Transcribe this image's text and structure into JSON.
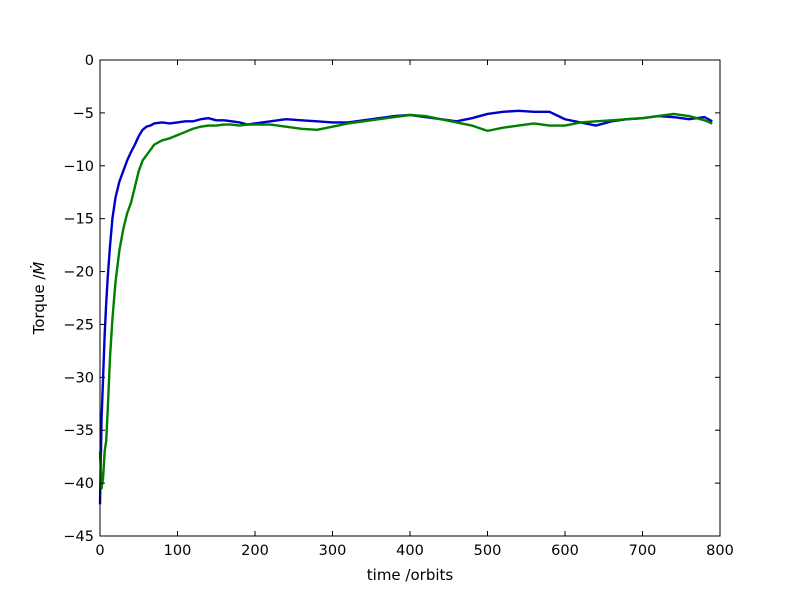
{
  "chart_data": {
    "type": "line",
    "title": "",
    "xlabel": "time /orbits",
    "ylabel": "Torque /",
    "ylabel_math": "Ṁ",
    "xlim": [
      0,
      800
    ],
    "ylim": [
      -45,
      0
    ],
    "xticks": [
      0,
      100,
      200,
      300,
      400,
      500,
      600,
      700,
      800
    ],
    "yticks": [
      0,
      -5,
      -10,
      -15,
      -20,
      -25,
      -30,
      -35,
      -40,
      -45
    ],
    "xtick_labels": [
      "0",
      "100",
      "200",
      "300",
      "400",
      "500",
      "600",
      "700",
      "800"
    ],
    "ytick_labels": [
      "0",
      "−5",
      "−10",
      "−15",
      "−20",
      "−25",
      "−30",
      "−35",
      "−40",
      "−45"
    ],
    "grid": false,
    "legend": "none",
    "series": [
      {
        "color": "#0000cc",
        "x": [
          0,
          2,
          4,
          6,
          8,
          10,
          13,
          16,
          20,
          25,
          30,
          35,
          40,
          45,
          50,
          55,
          60,
          65,
          70,
          80,
          90,
          100,
          110,
          120,
          130,
          140,
          150,
          160,
          170,
          180,
          190,
          200,
          220,
          240,
          260,
          280,
          300,
          320,
          340,
          360,
          380,
          400,
          420,
          440,
          460,
          480,
          500,
          520,
          540,
          560,
          580,
          600,
          620,
          640,
          660,
          680,
          700,
          720,
          740,
          760,
          780,
          790
        ],
        "y": [
          -42,
          -34,
          -30,
          -26,
          -23,
          -20.5,
          -17.5,
          -15,
          -13,
          -11.5,
          -10.5,
          -9.5,
          -8.7,
          -8,
          -7.2,
          -6.6,
          -6.3,
          -6.2,
          -6.0,
          -5.9,
          -6.0,
          -5.9,
          -5.8,
          -5.8,
          -5.6,
          -5.5,
          -5.7,
          -5.7,
          -5.8,
          -5.9,
          -6.1,
          -6.0,
          -5.8,
          -5.6,
          -5.7,
          -5.8,
          -5.9,
          -5.9,
          -5.7,
          -5.5,
          -5.3,
          -5.2,
          -5.4,
          -5.6,
          -5.8,
          -5.5,
          -5.1,
          -4.9,
          -4.8,
          -4.9,
          -4.9,
          -5.6,
          -5.9,
          -6.2,
          -5.8,
          -5.6,
          -5.5,
          -5.3,
          -5.4,
          -5.6,
          -5.4,
          -5.8
        ]
      },
      {
        "color": "#007f00",
        "x": [
          0,
          2,
          4,
          6,
          8,
          10,
          13,
          16,
          20,
          25,
          30,
          35,
          40,
          45,
          50,
          55,
          60,
          65,
          70,
          80,
          90,
          100,
          110,
          120,
          130,
          140,
          150,
          160,
          170,
          180,
          190,
          200,
          220,
          240,
          260,
          280,
          300,
          320,
          340,
          360,
          380,
          400,
          420,
          440,
          460,
          480,
          500,
          520,
          540,
          560,
          580,
          600,
          620,
          640,
          660,
          680,
          700,
          720,
          740,
          760,
          780,
          790
        ],
        "y": [
          -37,
          -40.5,
          -39.5,
          -37,
          -36,
          -33,
          -28,
          -24.5,
          -21,
          -18,
          -16,
          -14.5,
          -13.5,
          -12,
          -10.5,
          -9.5,
          -9,
          -8.5,
          -8,
          -7.6,
          -7.4,
          -7.1,
          -6.8,
          -6.5,
          -6.3,
          -6.2,
          -6.2,
          -6.1,
          -6.1,
          -6.2,
          -6.1,
          -6.1,
          -6.1,
          -6.3,
          -6.5,
          -6.6,
          -6.3,
          -6.0,
          -5.8,
          -5.6,
          -5.4,
          -5.2,
          -5.3,
          -5.6,
          -5.9,
          -6.2,
          -6.7,
          -6.4,
          -6.2,
          -6.0,
          -6.2,
          -6.2,
          -5.9,
          -5.8,
          -5.7,
          -5.6,
          -5.5,
          -5.3,
          -5.1,
          -5.3,
          -5.7,
          -6.0
        ]
      }
    ]
  }
}
